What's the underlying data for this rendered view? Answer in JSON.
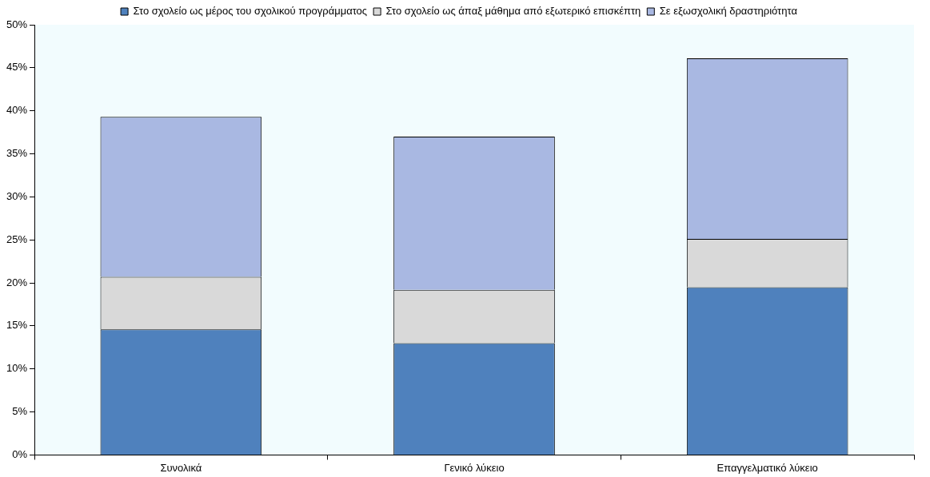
{
  "chart_data": {
    "type": "bar",
    "stacked": true,
    "categories": [
      "Συνολικά",
      "Γενικό λύκειο",
      "Επαγγελματικό λύκειο"
    ],
    "series": [
      {
        "name": "Στο σχολείο ως μέρος του σχολικού προγράμματος",
        "color": "#4f81bd",
        "values": [
          14.6,
          13.0,
          19.5
        ]
      },
      {
        "name": "Στο σχολείο ως άπαξ μάθημα από εξωτερικό επισκέπτη",
        "color": "#d9d9d9",
        "values": [
          6.1,
          6.2,
          5.6
        ]
      },
      {
        "name": "Σε εξωσχολική δραστηριότητα",
        "color": "#a9b8e2",
        "values": [
          18.6,
          17.8,
          21.0
        ]
      }
    ],
    "ylim": [
      0,
      50
    ],
    "yticks": [
      {
        "value": 0,
        "label": "0%"
      },
      {
        "value": 5,
        "label": "5%"
      },
      {
        "value": 10,
        "label": "10%"
      },
      {
        "value": 15,
        "label": "15%"
      },
      {
        "value": 20,
        "label": "20%"
      },
      {
        "value": 25,
        "label": "25%"
      },
      {
        "value": 30,
        "label": "30%"
      },
      {
        "value": 35,
        "label": "35%"
      },
      {
        "value": 40,
        "label": "40%"
      },
      {
        "value": 45,
        "label": "45%"
      },
      {
        "value": 50,
        "label": "50%"
      }
    ],
    "grid": false,
    "legend": "top"
  }
}
